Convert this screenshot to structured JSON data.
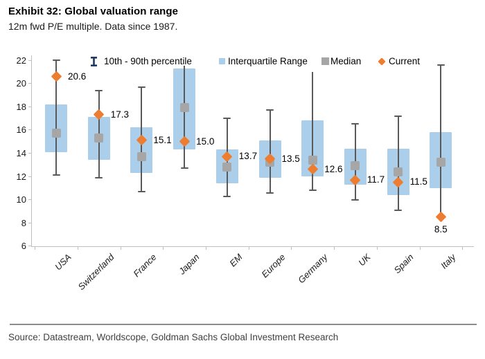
{
  "header": {
    "title": "Exhibit 32: Global valuation range",
    "subtitle": "12m fwd P/E multiple. Data since 1987."
  },
  "legend": {
    "percentile_label": "10th - 90th percentile",
    "iqr_label": "Interquartile Range",
    "median_label": "Median",
    "current_label": "Current"
  },
  "footer": {
    "source": "Source: Datastream, Worldscope, Goldman Sachs Global Investment Research"
  },
  "colors": {
    "iqr_box": "#ABCFEA",
    "median": "#A6A6A6",
    "whisker": "#595959",
    "current": "#ED7D31",
    "percentile_icon": "#1F3864",
    "axis": "#BFBFBF"
  },
  "chart_data": {
    "type": "box",
    "title": "Exhibit 32: Global valuation range",
    "subtitle": "12m fwd P/E multiple. Data since 1987.",
    "ylabel": "12m fwd P/E multiple",
    "ylim": [
      6,
      22
    ],
    "yticks": [
      22,
      20,
      18,
      16,
      14,
      12,
      10,
      8,
      6
    ],
    "grid": false,
    "legend_position": "top-inside",
    "categories": [
      "USA",
      "Switzerland",
      "France",
      "Japan",
      "EM",
      "Europe",
      "Germany",
      "UK",
      "Spain",
      "Italy"
    ],
    "series": [
      {
        "name": "10th percentile",
        "values": [
          12.1,
          11.9,
          10.7,
          12.7,
          10.3,
          10.6,
          10.8,
          10.0,
          9.1,
          8.6
        ]
      },
      {
        "name": "25th percentile",
        "values": [
          14.1,
          13.4,
          12.3,
          14.3,
          11.4,
          11.9,
          12.0,
          11.3,
          10.4,
          11.0
        ]
      },
      {
        "name": "Median",
        "values": [
          15.7,
          15.3,
          13.7,
          17.9,
          12.8,
          13.2,
          13.4,
          12.9,
          12.4,
          13.2
        ]
      },
      {
        "name": "75th percentile",
        "values": [
          18.2,
          17.1,
          16.2,
          21.3,
          14.3,
          15.1,
          16.8,
          14.4,
          14.4,
          15.8
        ]
      },
      {
        "name": "90th percentile",
        "values": [
          22.0,
          19.4,
          19.7,
          21.5,
          17.0,
          17.7,
          21.0,
          16.5,
          17.2,
          21.6
        ]
      },
      {
        "name": "Current",
        "values": [
          20.6,
          17.3,
          15.1,
          15.0,
          13.7,
          13.5,
          12.6,
          11.7,
          11.5,
          8.5
        ]
      }
    ],
    "current_labels": [
      "20.6",
      "17.3",
      "15.1",
      "15.0",
      "13.7",
      "13.5",
      "12.6",
      "11.7",
      "11.5",
      "8.5"
    ],
    "current_label_placement": [
      "right",
      "right",
      "right",
      "right",
      "right",
      "right",
      "right",
      "right",
      "right",
      "below"
    ],
    "whisker_top_cap": [
      true,
      true,
      true,
      false,
      true,
      true,
      false,
      true,
      true,
      true
    ],
    "whisker_bottom_cap": [
      true,
      true,
      true,
      true,
      true,
      true,
      true,
      true,
      true,
      false
    ]
  }
}
